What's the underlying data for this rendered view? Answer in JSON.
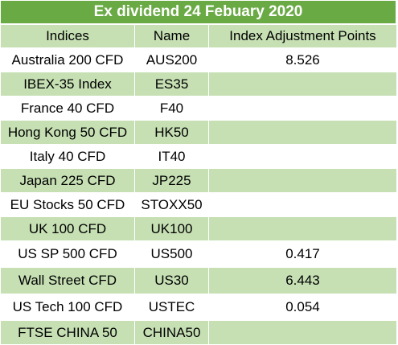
{
  "title": "Ex dividend 24 Febuary 2020",
  "colors": {
    "header_green": "#6aaa45",
    "band_green": "#c6e0b4",
    "band_white": "#ffffff"
  },
  "columns": [
    "Indices",
    "Name",
    "Index Adjustment Points"
  ],
  "rows": [
    {
      "index": "Australia 200 CFD",
      "name": "AUS200",
      "points": "8.526"
    },
    {
      "index": "IBEX-35 Index",
      "name": "ES35",
      "points": ""
    },
    {
      "index": "France 40 CFD",
      "name": "F40",
      "points": ""
    },
    {
      "index": "Hong Kong 50 CFD",
      "name": "HK50",
      "points": ""
    },
    {
      "index": "Italy 40 CFD",
      "name": "IT40",
      "points": ""
    },
    {
      "index": "Japan 225 CFD",
      "name": "JP225",
      "points": ""
    },
    {
      "index": "EU Stocks 50 CFD",
      "name": "STOXX50",
      "points": ""
    },
    {
      "index": "UK 100 CFD",
      "name": "UK100",
      "points": ""
    },
    {
      "index": "US SP 500 CFD",
      "name": "US500",
      "points": "0.417"
    },
    {
      "index": "Wall Street CFD",
      "name": "US30",
      "points": "6.443"
    },
    {
      "index": "US Tech 100 CFD",
      "name": "USTEC",
      "points": "0.054"
    },
    {
      "index": "FTSE CHINA 50",
      "name": "CHINA50",
      "points": ""
    }
  ]
}
